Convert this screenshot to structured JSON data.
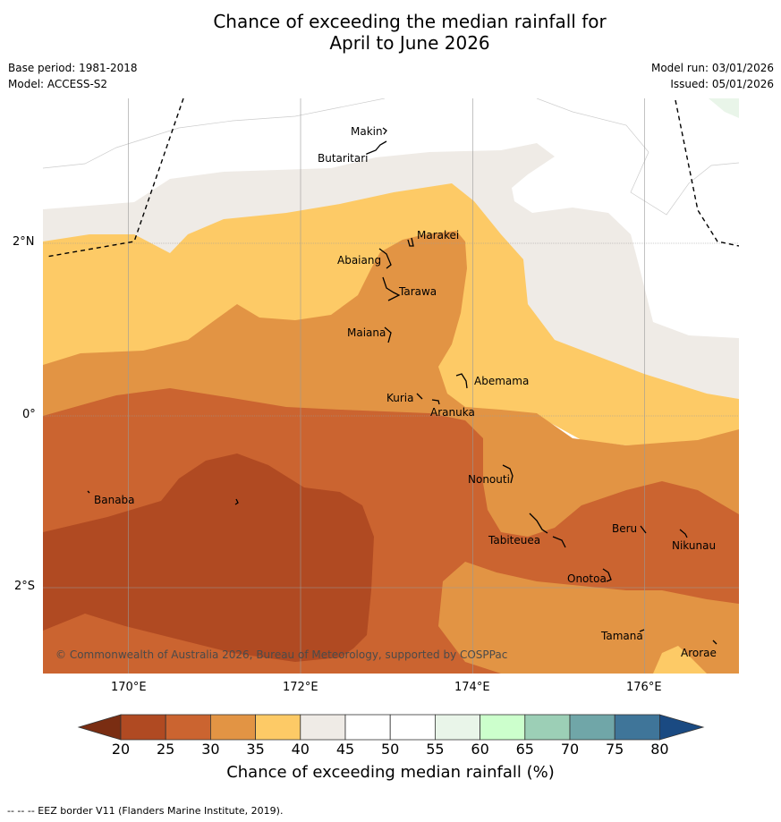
{
  "title_line1": "Chance of exceeding the median rainfall for",
  "title_line2": "April to June 2026",
  "meta": {
    "base_period": "Base period: 1981-2018",
    "model": "Model: ACCESS-S2",
    "model_run": "Model run: 03/01/2026",
    "issued": "Issued: 05/01/2026"
  },
  "axes": {
    "lon_labels": [
      "170°E",
      "172°E",
      "174°E",
      "176°E"
    ],
    "lat_labels": [
      "2°N",
      "0°",
      "2°S"
    ]
  },
  "places": [
    "Makin",
    "Butaritari",
    "Marakei",
    "Abaiang",
    "Tarawa",
    "Maiana",
    "Abemama",
    "Kuria",
    "Aranuka",
    "Nonouti",
    "Banaba",
    "Beru",
    "Tabiteuea",
    "Nikunau",
    "Onotoa",
    "Tamana",
    "Arorae"
  ],
  "copyright": "© Commonwealth of Australia 2026, Bureau of Meteorology, supported by COSPPac",
  "colorbar": {
    "title": "Chance of exceeding median rainfall (%)",
    "ticks": [
      "20",
      "25",
      "30",
      "35",
      "40",
      "45",
      "50",
      "55",
      "60",
      "65",
      "70",
      "75",
      "80"
    ],
    "colors": {
      "below20": "#7a2d12",
      "c20_25": "#b04a22",
      "c25_30": "#cb6430",
      "c30_35": "#e29444",
      "c35_40": "#fdca66",
      "c40_45": "#efebe6",
      "c45_50": "#ffffff",
      "c50_55": "#ffffff",
      "c55_60": "#e9f5e9",
      "c60_65": "#ccffcc",
      "c65_70": "#9ccfb6",
      "c70_75": "#70a6a8",
      "c75_80": "#3f7599",
      "above80": "#1a4a82"
    }
  },
  "footnote": "--  --  -- EEZ border V11 (Flanders Marine Institute, 2019)."
}
